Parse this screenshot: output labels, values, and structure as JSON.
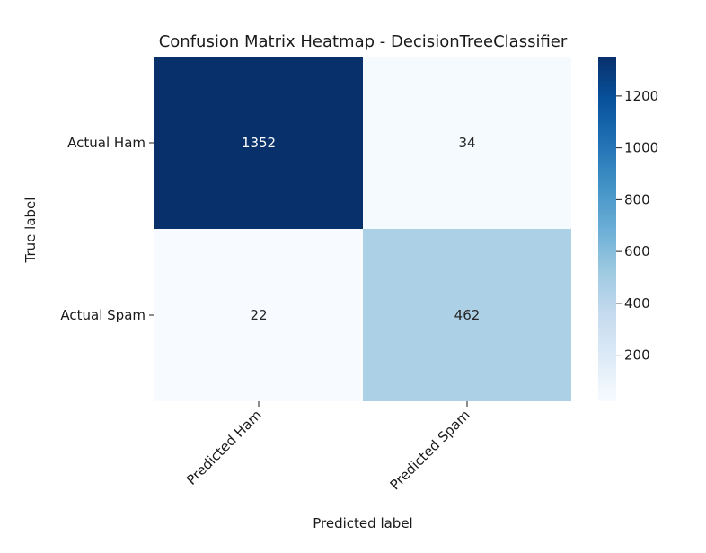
{
  "chart_data": {
    "type": "heatmap",
    "title": "Confusion Matrix Heatmap - DecisionTreeClassifier",
    "xlabel": "Predicted label",
    "ylabel": "True label",
    "row_labels": [
      "Actual Ham",
      "Actual Spam"
    ],
    "col_labels": [
      "Predicted Ham",
      "Predicted Spam"
    ],
    "values": [
      [
        1352,
        34
      ],
      [
        22,
        462
      ]
    ],
    "colormap": "Blues",
    "colorbar": {
      "range": [
        22,
        1352
      ],
      "ticks": [
        200,
        400,
        600,
        800,
        1000,
        1200
      ],
      "tick_labels": [
        "200",
        "400",
        "600",
        "800",
        "1000",
        "1200"
      ]
    },
    "annotation_colors": {
      "dark": "#ffffff",
      "light": "#262626"
    }
  }
}
